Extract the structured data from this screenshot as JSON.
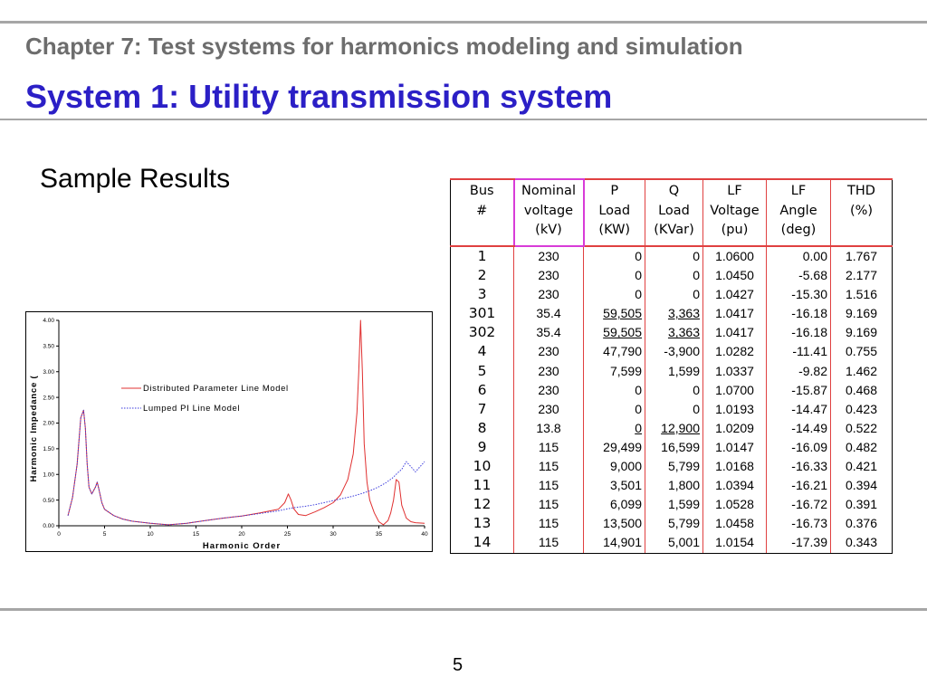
{
  "slide": {
    "chapter": "Chapter 7: Test systems for harmonics modeling and simulation",
    "title": "System 1: Utility transmission system",
    "subtitle": "Sample Results",
    "page_number": "5"
  },
  "table": {
    "headers": [
      [
        "Bus",
        "#"
      ],
      [
        "Nominal",
        "voltage",
        "(kV)"
      ],
      [
        "P",
        "Load",
        "(KW)"
      ],
      [
        "Q",
        "Load",
        "(KVar)"
      ],
      [
        "LF",
        "Voltage",
        "(pu)"
      ],
      [
        "LF",
        "Angle",
        "(deg)"
      ],
      [
        "THD",
        "(%)"
      ]
    ],
    "rows": [
      [
        "1",
        "230",
        "0",
        "0",
        "1.0600",
        "0.00",
        "1.767"
      ],
      [
        "2",
        "230",
        "0",
        "0",
        "1.0450",
        "-5.68",
        "2.177"
      ],
      [
        "3",
        "230",
        "0",
        "0",
        "1.0427",
        "-15.30",
        "1.516"
      ],
      [
        "301",
        "35.4",
        "59,505",
        "3,363",
        "1.0417",
        "-16.18",
        "9.169"
      ],
      [
        "302",
        "35.4",
        "59,505",
        "3,363",
        "1.0417",
        "-16.18",
        "9.169"
      ],
      [
        "4",
        "230",
        "47,790",
        "-3,900",
        "1.0282",
        "-11.41",
        "0.755"
      ],
      [
        "5",
        "230",
        "7,599",
        "1,599",
        "1.0337",
        "-9.82",
        "1.462"
      ],
      [
        "6",
        "230",
        "0",
        "0",
        "1.0700",
        "-15.87",
        "0.468"
      ],
      [
        "7",
        "230",
        "0",
        "0",
        "1.0193",
        "-14.47",
        "0.423"
      ],
      [
        "8",
        "13.8",
        "0",
        "12,900",
        "1.0209",
        "-14.49",
        "0.522"
      ],
      [
        "9",
        "115",
        "29,499",
        "16,599",
        "1.0147",
        "-16.09",
        "0.482"
      ],
      [
        "10",
        "115",
        "9,000",
        "5,799",
        "1.0168",
        "-16.33",
        "0.421"
      ],
      [
        "11",
        "115",
        "3,501",
        "1,800",
        "1.0394",
        "-16.21",
        "0.394"
      ],
      [
        "12",
        "115",
        "6,099",
        "1,599",
        "1.0528",
        "-16.72",
        "0.391"
      ],
      [
        "13",
        "115",
        "13,500",
        "5,799",
        "1.0458",
        "-16.73",
        "0.376"
      ],
      [
        "14",
        "115",
        "14,901",
        "5,001",
        "1.0154",
        "-17.39",
        "0.343"
      ]
    ],
    "underlined_cells": [
      [
        3,
        2
      ],
      [
        3,
        3
      ],
      [
        4,
        2
      ],
      [
        4,
        3
      ],
      [
        9,
        2
      ],
      [
        9,
        3
      ]
    ]
  },
  "chart_data": {
    "type": "line",
    "xlabel": "Harmonic Order",
    "ylabel": "Harmonic Impedance (",
    "xlim": [
      0,
      40
    ],
    "ylim": [
      0,
      4
    ],
    "xticks": [
      "0",
      "5",
      "10",
      "15",
      "20",
      "25",
      "30",
      "35",
      "40"
    ],
    "yticks": [
      "0.00",
      "0.50",
      "1.00",
      "1.50",
      "2.00",
      "2.50",
      "3.00",
      "3.50",
      "4.00"
    ],
    "grid": false,
    "legend_position": "center-right",
    "series": [
      {
        "name": "Distributed Parameter Line Model",
        "color": "#e03030",
        "style": "solid",
        "x": [
          1,
          1.5,
          2,
          2.4,
          2.7,
          2.9,
          3.1,
          3.3,
          3.6,
          4,
          4.2,
          4.4,
          4.7,
          5,
          6,
          7,
          8,
          10,
          12,
          14,
          16,
          18,
          20,
          22,
          24,
          24.7,
          25.1,
          25.4,
          25.7,
          26.2,
          27,
          28,
          29,
          30,
          30.8,
          31.6,
          32.2,
          32.6,
          32.8,
          33.0,
          33.2,
          33.4,
          33.7,
          34.0,
          34.5,
          35,
          35.5,
          36,
          36.3,
          36.6,
          36.9,
          37.2,
          37.5,
          38,
          38.5,
          39,
          40
        ],
        "y": [
          0.2,
          0.55,
          1.2,
          2.1,
          2.25,
          1.9,
          1.2,
          0.75,
          0.62,
          0.75,
          0.85,
          0.7,
          0.45,
          0.32,
          0.2,
          0.13,
          0.09,
          0.05,
          0.02,
          0.05,
          0.1,
          0.15,
          0.19,
          0.25,
          0.32,
          0.45,
          0.62,
          0.5,
          0.33,
          0.22,
          0.2,
          0.27,
          0.35,
          0.45,
          0.6,
          0.9,
          1.4,
          2.2,
          3.0,
          4.0,
          3.0,
          1.6,
          0.85,
          0.5,
          0.25,
          0.08,
          0.02,
          0.1,
          0.25,
          0.5,
          0.9,
          0.85,
          0.4,
          0.15,
          0.08,
          0.06,
          0.05
        ]
      },
      {
        "name": "Lumped PI Line Model",
        "color": "#3a3adc",
        "style": "dotted",
        "x": [
          1,
          1.5,
          2,
          2.4,
          2.7,
          2.9,
          3.1,
          3.3,
          3.6,
          4,
          4.2,
          4.4,
          4.7,
          5,
          6,
          7,
          8,
          10,
          12,
          14,
          16,
          18,
          20,
          22,
          24,
          25,
          26,
          27,
          28,
          29,
          30,
          31,
          32,
          33,
          34,
          35,
          35.7,
          36.5,
          37,
          37.5,
          38,
          38.5,
          39,
          40
        ],
        "y": [
          0.2,
          0.55,
          1.2,
          2.1,
          2.25,
          1.9,
          1.2,
          0.75,
          0.62,
          0.75,
          0.85,
          0.7,
          0.45,
          0.32,
          0.2,
          0.13,
          0.09,
          0.05,
          0.02,
          0.05,
          0.1,
          0.15,
          0.19,
          0.24,
          0.29,
          0.33,
          0.36,
          0.38,
          0.41,
          0.45,
          0.49,
          0.53,
          0.57,
          0.62,
          0.68,
          0.76,
          0.83,
          0.93,
          1.02,
          1.1,
          1.25,
          1.15,
          1.05,
          1.25
        ]
      }
    ]
  }
}
